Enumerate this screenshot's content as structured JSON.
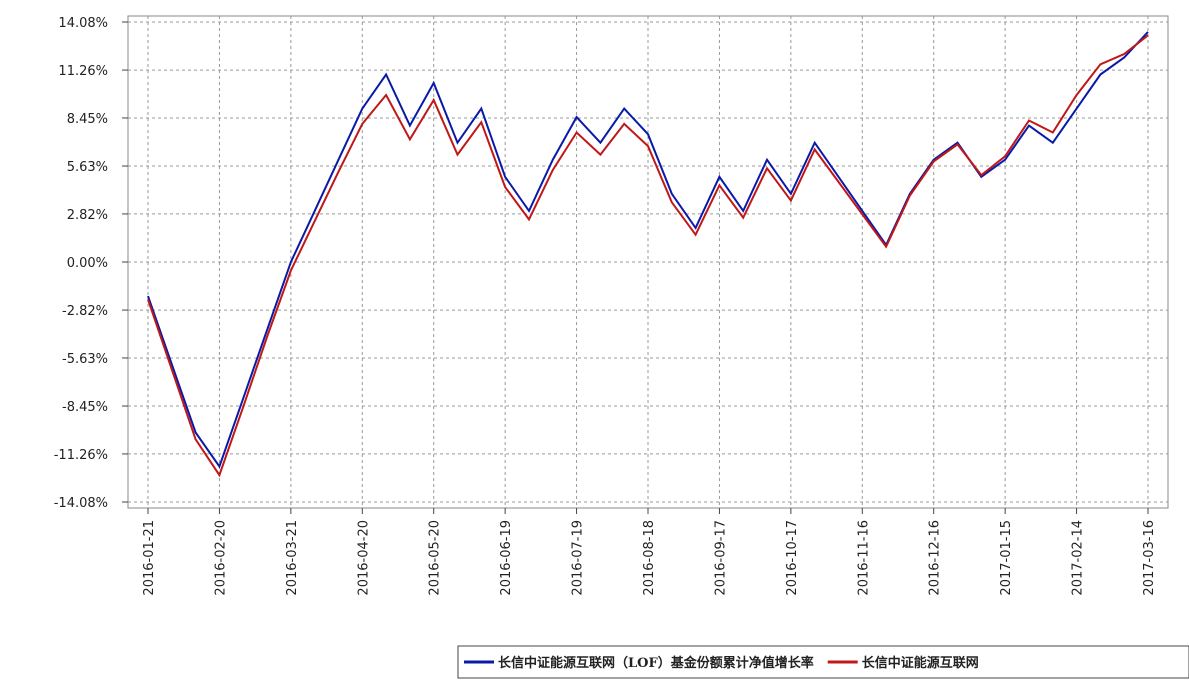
{
  "chart_data": {
    "type": "line",
    "x": [
      "2016-01-21",
      "2016-01-31",
      "2016-02-10",
      "2016-02-20",
      "2016-03-01",
      "2016-03-11",
      "2016-03-21",
      "2016-03-31",
      "2016-04-10",
      "2016-04-20",
      "2016-04-30",
      "2016-05-10",
      "2016-05-20",
      "2016-05-30",
      "2016-06-09",
      "2016-06-19",
      "2016-06-29",
      "2016-07-09",
      "2016-07-19",
      "2016-07-29",
      "2016-08-08",
      "2016-08-18",
      "2016-08-28",
      "2016-09-07",
      "2016-09-17",
      "2016-09-27",
      "2016-10-07",
      "2016-10-17",
      "2016-10-27",
      "2016-11-06",
      "2016-11-16",
      "2016-11-26",
      "2016-12-06",
      "2016-12-16",
      "2016-12-26",
      "2017-01-05",
      "2017-01-15",
      "2017-01-25",
      "2017-02-04",
      "2017-02-14",
      "2017-02-24",
      "2017-03-06",
      "2017-03-16"
    ],
    "series": [
      {
        "name": "长信中证能源互联网（LOF）基金份额累计净值增长率",
        "color": "#0a1aa8",
        "values": [
          -2,
          -6,
          -10,
          -12,
          -8,
          -4,
          0,
          3,
          6,
          9,
          11,
          8,
          10.5,
          7,
          9,
          5,
          3,
          6,
          8.5,
          7,
          9,
          7.5,
          4,
          2,
          5,
          3,
          6,
          4,
          7,
          5,
          3,
          1,
          4,
          6,
          7,
          5,
          6,
          8,
          7,
          9,
          11,
          12,
          13.5
        ]
      },
      {
        "name": "长信中证能源互联网",
        "color": "#c01818",
        "values": [
          -2.2,
          -6.3,
          -10.4,
          -12.5,
          -8.5,
          -4.4,
          -0.5,
          2.4,
          5.3,
          8.1,
          9.8,
          7.2,
          9.5,
          6.3,
          8.2,
          4.4,
          2.5,
          5.4,
          7.6,
          6.3,
          8.1,
          6.8,
          3.5,
          1.6,
          4.5,
          2.6,
          5.5,
          3.6,
          6.6,
          4.7,
          2.8,
          0.9,
          3.9,
          5.9,
          6.9,
          5.1,
          6.2,
          8.3,
          7.6,
          9.8,
          11.6,
          12.2,
          13.3
        ]
      }
    ],
    "xlim": [
      "2016-01-21",
      "2017-03-16"
    ],
    "xticks": [
      "2016-01-21",
      "2016-02-20",
      "2016-03-21",
      "2016-04-20",
      "2016-05-20",
      "2016-06-19",
      "2016-07-19",
      "2016-08-18",
      "2016-09-17",
      "2016-10-17",
      "2016-11-16",
      "2016-12-16",
      "2017-01-15",
      "2017-02-14",
      "2017-03-16"
    ],
    "ylim": [
      -14.08,
      14.08
    ],
    "yticks": [
      {
        "value": 14.08,
        "label": "14.08%"
      },
      {
        "value": 11.26,
        "label": "11.26%"
      },
      {
        "value": 8.45,
        "label": "8.45%"
      },
      {
        "value": 5.63,
        "label": "5.63%"
      },
      {
        "value": 2.82,
        "label": "2.82%"
      },
      {
        "value": 0,
        "label": "0.00%"
      },
      {
        "value": -2.82,
        "label": "-2.82%"
      },
      {
        "value": -5.63,
        "label": "-5.63%"
      },
      {
        "value": -8.45,
        "label": "-8.45%"
      },
      {
        "value": -11.26,
        "label": "-11.26%"
      },
      {
        "value": -14.08,
        "label": "-14.08%"
      }
    ],
    "grid": true
  }
}
